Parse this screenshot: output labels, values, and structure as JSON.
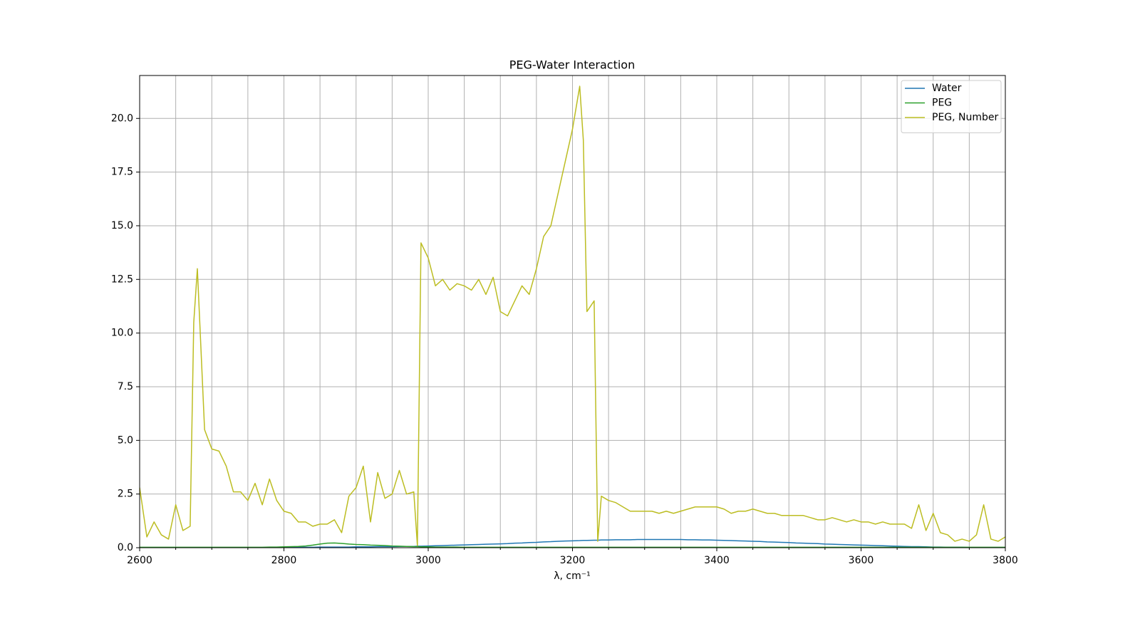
{
  "chart_data": {
    "type": "line",
    "title": "PEG-Water Interaction",
    "x_label": "λ, cm⁻¹",
    "xlim": [
      2600,
      3800
    ],
    "ylim": [
      0,
      22
    ],
    "xticks": [
      2600,
      2800,
      3000,
      3200,
      3400,
      3600,
      3800
    ],
    "xminorticks": [
      2650,
      2700,
      2750,
      2850,
      2900,
      2950,
      3050,
      3100,
      3150,
      3250,
      3300,
      3350,
      3450,
      3500,
      3550,
      3650,
      3700,
      3750
    ],
    "yticks": [
      {
        "value": 0,
        "label": "0.0"
      },
      2.5,
      {
        "value": 5,
        "label": "5.0"
      },
      7.5,
      {
        "value": 10,
        "label": "10.0"
      },
      12.5,
      {
        "value": 15,
        "label": "15.0"
      },
      17.5,
      {
        "value": 20,
        "label": "20.0"
      }
    ],
    "grid": true,
    "minor_grid": true,
    "legend": "upper-right",
    "x": [
      2600,
      2610,
      2620,
      2630,
      2640,
      2650,
      2660,
      2670,
      2675,
      2680,
      2690,
      2700,
      2710,
      2720,
      2730,
      2740,
      2750,
      2760,
      2770,
      2780,
      2790,
      2800,
      2810,
      2820,
      2830,
      2840,
      2850,
      2860,
      2870,
      2880,
      2890,
      2900,
      2910,
      2920,
      2930,
      2940,
      2950,
      2960,
      2970,
      2980,
      2985,
      2990,
      3000,
      3010,
      3020,
      3030,
      3040,
      3050,
      3060,
      3070,
      3080,
      3090,
      3100,
      3110,
      3120,
      3130,
      3140,
      3150,
      3160,
      3170,
      3180,
      3190,
      3200,
      3210,
      3215,
      3220,
      3230,
      3235,
      3240,
      3250,
      3260,
      3270,
      3280,
      3290,
      3300,
      3310,
      3320,
      3330,
      3340,
      3350,
      3360,
      3370,
      3380,
      3390,
      3400,
      3410,
      3420,
      3430,
      3440,
      3450,
      3460,
      3470,
      3480,
      3490,
      3500,
      3510,
      3520,
      3530,
      3540,
      3550,
      3560,
      3570,
      3580,
      3590,
      3600,
      3610,
      3620,
      3630,
      3640,
      3650,
      3660,
      3670,
      3680,
      3690,
      3700,
      3710,
      3720,
      3730,
      3740,
      3750,
      3760,
      3770,
      3780,
      3790,
      3800
    ],
    "series": [
      {
        "name": "Water",
        "color": "#1f77b4",
        "values": [
          0.01,
          0.01,
          0.01,
          0.01,
          0.01,
          0.01,
          0.01,
          0.01,
          0.01,
          0.01,
          0.01,
          0.01,
          0.01,
          0.01,
          0.01,
          0.01,
          0.01,
          0.01,
          0.01,
          0.01,
          0.02,
          0.02,
          0.02,
          0.02,
          0.02,
          0.02,
          0.03,
          0.03,
          0.03,
          0.03,
          0.03,
          0.04,
          0.04,
          0.04,
          0.05,
          0.05,
          0.05,
          0.06,
          0.06,
          0.06,
          0.07,
          0.07,
          0.08,
          0.09,
          0.1,
          0.11,
          0.12,
          0.13,
          0.14,
          0.15,
          0.16,
          0.17,
          0.18,
          0.19,
          0.21,
          0.22,
          0.24,
          0.25,
          0.27,
          0.28,
          0.3,
          0.31,
          0.32,
          0.33,
          0.34,
          0.34,
          0.35,
          0.35,
          0.36,
          0.36,
          0.37,
          0.37,
          0.37,
          0.38,
          0.38,
          0.38,
          0.38,
          0.38,
          0.38,
          0.38,
          0.37,
          0.37,
          0.36,
          0.36,
          0.35,
          0.34,
          0.33,
          0.32,
          0.31,
          0.3,
          0.29,
          0.27,
          0.26,
          0.25,
          0.24,
          0.22,
          0.21,
          0.2,
          0.19,
          0.17,
          0.16,
          0.15,
          0.14,
          0.13,
          0.12,
          0.11,
          0.1,
          0.09,
          0.08,
          0.07,
          0.06,
          0.05,
          0.05,
          0.04,
          0.03,
          0.03,
          0.02,
          0.02,
          0.02,
          0.01,
          0.01,
          0.01,
          0.01,
          0.01,
          0.01
        ]
      },
      {
        "name": "PEG",
        "color": "#2ca02c",
        "values": [
          0.02,
          0.02,
          0.02,
          0.02,
          0.02,
          0.02,
          0.02,
          0.02,
          0.02,
          0.02,
          0.02,
          0.02,
          0.02,
          0.02,
          0.02,
          0.02,
          0.02,
          0.02,
          0.02,
          0.03,
          0.03,
          0.04,
          0.05,
          0.06,
          0.08,
          0.12,
          0.17,
          0.21,
          0.22,
          0.2,
          0.17,
          0.15,
          0.14,
          0.12,
          0.11,
          0.1,
          0.08,
          0.07,
          0.06,
          0.05,
          0.05,
          0.04,
          0.04,
          0.03,
          0.03,
          0.03,
          0.03,
          0.02,
          0.02,
          0.02,
          0.02,
          0.02,
          0.02,
          0.02,
          0.02,
          0.02,
          0.02,
          0.02,
          0.02,
          0.02,
          0.02,
          0.02,
          0.02,
          0.02,
          0.02,
          0.02,
          0.02,
          0.02,
          0.02,
          0.02,
          0.02,
          0.02,
          0.02,
          0.02,
          0.02,
          0.02,
          0.02,
          0.02,
          0.02,
          0.02,
          0.02,
          0.02,
          0.02,
          0.02,
          0.02,
          0.02,
          0.02,
          0.02,
          0.02,
          0.02,
          0.02,
          0.02,
          0.02,
          0.02,
          0.02,
          0.02,
          0.02,
          0.02,
          0.02,
          0.02,
          0.02,
          0.02,
          0.02,
          0.02,
          0.02,
          0.02,
          0.02,
          0.02,
          0.02,
          0.02,
          0.02,
          0.02,
          0.02,
          0.02,
          0.02,
          0.02,
          0.02,
          0.02,
          0.02,
          0.02,
          0.02,
          0.02,
          0.02,
          0.02,
          0.02
        ]
      },
      {
        "name": "PEG, Number",
        "color": "#bcbd22",
        "values": [
          2.8,
          0.5,
          1.2,
          0.6,
          0.4,
          2.0,
          0.8,
          1.0,
          10.5,
          13.0,
          5.5,
          4.6,
          4.5,
          3.8,
          2.6,
          2.6,
          2.2,
          3.0,
          2.0,
          3.2,
          2.2,
          1.7,
          1.6,
          1.2,
          1.2,
          1.0,
          1.1,
          1.1,
          1.3,
          0.7,
          2.4,
          2.8,
          3.8,
          1.2,
          3.5,
          2.3,
          2.5,
          3.6,
          2.5,
          2.6,
          0.1,
          14.2,
          13.5,
          12.2,
          12.5,
          12.0,
          12.3,
          12.2,
          12.0,
          12.5,
          11.8,
          12.6,
          11.0,
          10.8,
          11.5,
          12.2,
          11.8,
          13.0,
          14.5,
          15.0,
          16.5,
          18.0,
          19.5,
          21.5,
          19.0,
          11.0,
          11.5,
          0.3,
          2.4,
          2.2,
          2.1,
          1.9,
          1.7,
          1.7,
          1.7,
          1.7,
          1.6,
          1.7,
          1.6,
          1.7,
          1.8,
          1.9,
          1.9,
          1.9,
          1.9,
          1.8,
          1.6,
          1.7,
          1.7,
          1.8,
          1.7,
          1.6,
          1.6,
          1.5,
          1.5,
          1.5,
          1.5,
          1.4,
          1.3,
          1.3,
          1.4,
          1.3,
          1.2,
          1.3,
          1.2,
          1.2,
          1.1,
          1.2,
          1.1,
          1.1,
          1.1,
          0.9,
          2.0,
          0.8,
          1.6,
          0.7,
          0.6,
          0.3,
          0.4,
          0.3,
          0.6,
          2.0,
          0.4,
          0.3,
          0.5
        ]
      }
    ]
  }
}
